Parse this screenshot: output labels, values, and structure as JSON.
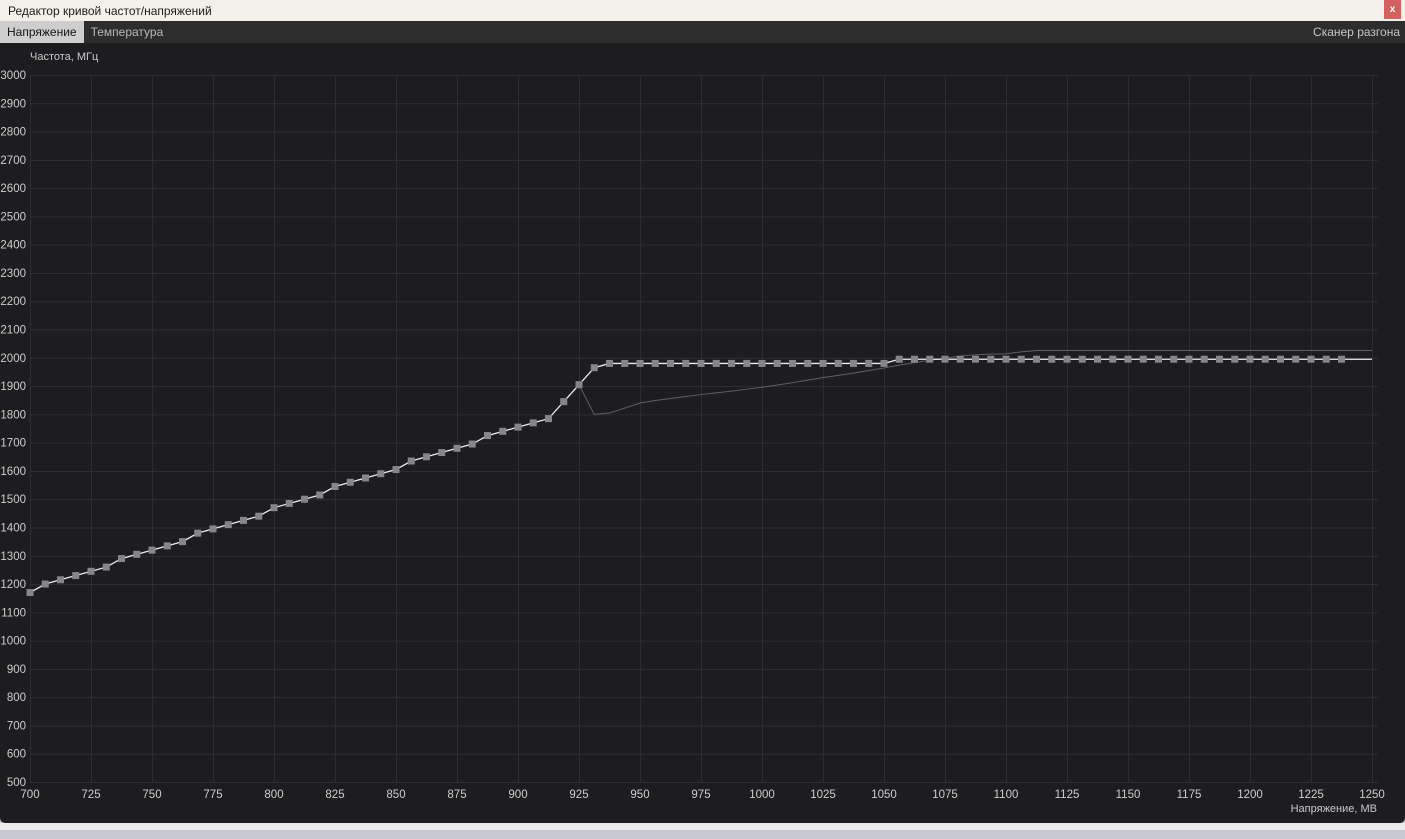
{
  "window": {
    "title": "Редактор кривой частот/напряжений",
    "close_label": "x"
  },
  "tabs": {
    "voltage": "Напряжение",
    "temperature": "Температура",
    "scanner": "Сканер разгона"
  },
  "colors": {
    "titlebar_bg": "#f3efe9",
    "close_button": "#d2615f",
    "tabbar_bg": "#2d2d2e",
    "active_tab_bg": "#cecece",
    "chart_bg": "#1d1d20",
    "grid": "#2e2e32",
    "tick_text": "#cdcdcd"
  },
  "chart_data": {
    "type": "line",
    "title": "",
    "xlabel": "Напряжение, МВ",
    "ylabel": "Частота, МГц",
    "xlim": [
      700,
      1250
    ],
    "ylim": [
      500,
      3000
    ],
    "x_tick_step": 25,
    "y_tick_step": 100,
    "grid": true,
    "legend": "none",
    "series": [
      {
        "name": "vf-curve-editable",
        "marker": "square",
        "color": "#ededed",
        "marker_color": "#86868a",
        "last_marker_x": 1237.5,
        "points": [
          [
            700,
            1170
          ],
          [
            706.25,
            1200
          ],
          [
            712.5,
            1215
          ],
          [
            718.75,
            1230
          ],
          [
            725,
            1245
          ],
          [
            731.25,
            1260
          ],
          [
            737.5,
            1290
          ],
          [
            743.75,
            1305
          ],
          [
            750,
            1320
          ],
          [
            756.25,
            1335
          ],
          [
            762.5,
            1350
          ],
          [
            768.75,
            1380
          ],
          [
            775,
            1395
          ],
          [
            781.25,
            1410
          ],
          [
            787.5,
            1425
          ],
          [
            793.75,
            1440
          ],
          [
            800,
            1470
          ],
          [
            806.25,
            1485
          ],
          [
            812.5,
            1500
          ],
          [
            818.75,
            1515
          ],
          [
            825,
            1545
          ],
          [
            831.25,
            1560
          ],
          [
            837.5,
            1575
          ],
          [
            843.75,
            1590
          ],
          [
            850,
            1605
          ],
          [
            856.25,
            1635
          ],
          [
            862.5,
            1650
          ],
          [
            868.75,
            1665
          ],
          [
            875,
            1680
          ],
          [
            881.25,
            1695
          ],
          [
            887.5,
            1725
          ],
          [
            893.75,
            1740
          ],
          [
            900,
            1755
          ],
          [
            906.25,
            1770
          ],
          [
            912.5,
            1785
          ],
          [
            918.75,
            1845
          ],
          [
            925,
            1905
          ],
          [
            931.25,
            1965
          ],
          [
            937.5,
            1980
          ],
          [
            943.75,
            1980
          ],
          [
            950,
            1980
          ],
          [
            956.25,
            1980
          ],
          [
            962.5,
            1980
          ],
          [
            968.75,
            1980
          ],
          [
            975,
            1980
          ],
          [
            981.25,
            1980
          ],
          [
            987.5,
            1980
          ],
          [
            993.75,
            1980
          ],
          [
            1000,
            1980
          ],
          [
            1006.25,
            1980
          ],
          [
            1012.5,
            1980
          ],
          [
            1018.75,
            1980
          ],
          [
            1025,
            1980
          ],
          [
            1031.25,
            1980
          ],
          [
            1037.5,
            1980
          ],
          [
            1043.75,
            1980
          ],
          [
            1050,
            1980
          ],
          [
            1056.25,
            1995
          ],
          [
            1062.5,
            1995
          ],
          [
            1068.75,
            1995
          ],
          [
            1075,
            1995
          ],
          [
            1081.25,
            1995
          ],
          [
            1087.5,
            1995
          ],
          [
            1093.75,
            1995
          ],
          [
            1100,
            1995
          ],
          [
            1106.25,
            1995
          ],
          [
            1112.5,
            1995
          ],
          [
            1118.75,
            1995
          ],
          [
            1125,
            1995
          ],
          [
            1131.25,
            1995
          ],
          [
            1137.5,
            1995
          ],
          [
            1143.75,
            1995
          ],
          [
            1150,
            1995
          ],
          [
            1156.25,
            1995
          ],
          [
            1162.5,
            1995
          ],
          [
            1168.75,
            1995
          ],
          [
            1175,
            1995
          ],
          [
            1181.25,
            1995
          ],
          [
            1187.5,
            1995
          ],
          [
            1193.75,
            1995
          ],
          [
            1200,
            1995
          ],
          [
            1206.25,
            1995
          ],
          [
            1212.5,
            1995
          ],
          [
            1218.75,
            1995
          ],
          [
            1225,
            1995
          ],
          [
            1231.25,
            1995
          ],
          [
            1237.5,
            1995
          ],
          [
            1250,
            1995
          ]
        ]
      },
      {
        "name": "vf-curve-applied",
        "marker": "none",
        "color": "#5f5f64",
        "points": [
          [
            925,
            1905
          ],
          [
            931.25,
            1800
          ],
          [
            937.5,
            1805
          ],
          [
            943.75,
            1822
          ],
          [
            950,
            1840
          ],
          [
            956.25,
            1849
          ],
          [
            962.5,
            1856
          ],
          [
            968.75,
            1863
          ],
          [
            975,
            1870
          ],
          [
            981.25,
            1876
          ],
          [
            987.5,
            1882
          ],
          [
            993.75,
            1889
          ],
          [
            1000,
            1896
          ],
          [
            1006.25,
            1904
          ],
          [
            1012.5,
            1912
          ],
          [
            1018.75,
            1921
          ],
          [
            1025,
            1930
          ],
          [
            1031.25,
            1938
          ],
          [
            1037.5,
            1946
          ],
          [
            1043.75,
            1955
          ],
          [
            1050,
            1964
          ],
          [
            1056.25,
            1974
          ],
          [
            1062.5,
            1983
          ],
          [
            1068.75,
            1991
          ],
          [
            1075,
            1999
          ],
          [
            1081.25,
            2006
          ],
          [
            1087.5,
            2011
          ],
          [
            1093.75,
            2013
          ],
          [
            1100,
            2014
          ],
          [
            1106.25,
            2021
          ],
          [
            1112.5,
            2026
          ],
          [
            1250,
            2026
          ]
        ]
      }
    ]
  }
}
